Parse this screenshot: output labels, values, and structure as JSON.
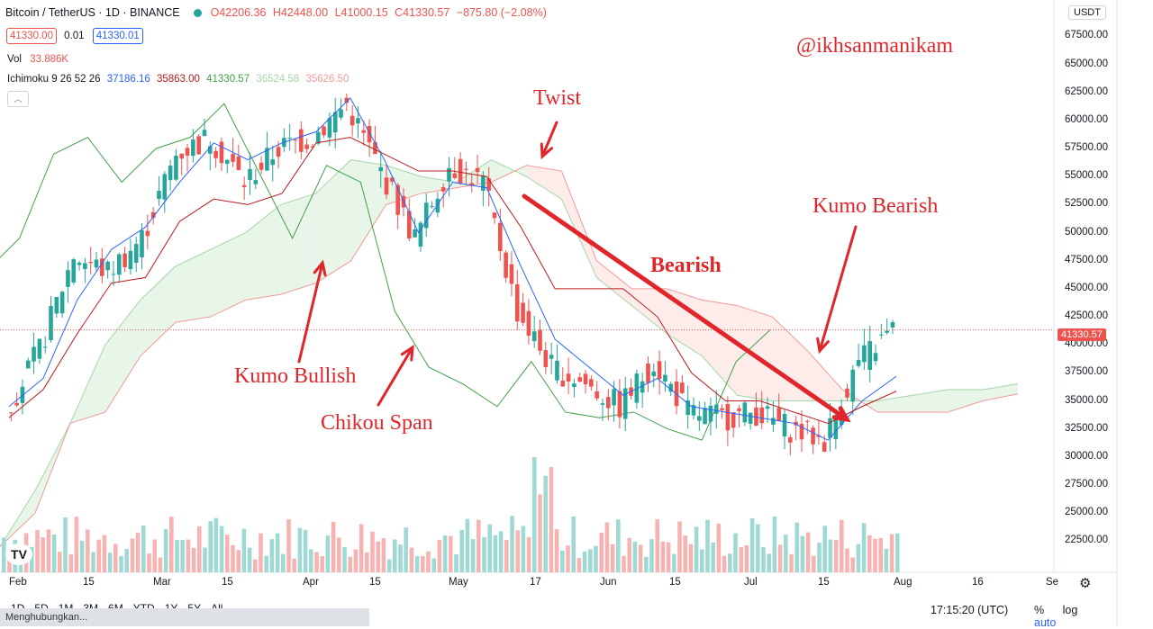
{
  "symbol_legend": {
    "title": "Bitcoin / TetherUS · 1D · BINANCE",
    "open": "O42206.36",
    "high": "H42448.00",
    "low": "L41000.15",
    "close": "C41330.57",
    "change": "−875.80 (−2.08%)"
  },
  "order_row": {
    "sell": "41330.00",
    "spread": "0.01",
    "buy": "41330.01"
  },
  "volume_legend": {
    "name": "Vol",
    "value": "33.886K"
  },
  "ichimoku_legend": {
    "name": "Ichimoku 9 26 52 26",
    "conversion": "37186.16",
    "base": "35863.00",
    "lagging": "41330.57",
    "lead_a": "36524.58",
    "lead_b": "35626.50"
  },
  "currency_button": "USDT",
  "current_price_label": "41330.57",
  "price_ticks": [
    "67500.00",
    "65000.00",
    "62500.00",
    "60000.00",
    "57500.00",
    "55000.00",
    "52500.00",
    "50000.00",
    "47500.00",
    "45000.00",
    "42500.00",
    "40000.00",
    "37500.00",
    "35000.00",
    "32500.00",
    "30000.00",
    "27500.00",
    "25000.00",
    "22500.00"
  ],
  "time_labels": [
    "Feb",
    "15",
    "Mar",
    "15",
    "Apr",
    "15",
    "May",
    "17",
    "Jun",
    "15",
    "Jul",
    "15",
    "Aug",
    "16",
    "Se"
  ],
  "annotations": {
    "watermark": "@ikhsanmanikam",
    "twist": "Twist",
    "kumo_bearish": "Kumo Bearish",
    "bearish": "Bearish",
    "kumo_bullish": "Kumo Bullish",
    "chikou_span": "Chikou Span"
  },
  "bottom_bar": {
    "timeframes": [
      "1D",
      "5D",
      "1M",
      "3M",
      "6M",
      "YTD",
      "1Y",
      "5Y",
      "All"
    ],
    "clock": "17:15:20 (UTC)",
    "percent": "%",
    "log": "log",
    "auto": "auto"
  },
  "status_text": "Menghubungkan...",
  "colors": {
    "up": "#26a69a",
    "down": "#ef5350",
    "conversion": "#2962ff",
    "base": "#b71c1c",
    "lagging": "#43a047",
    "kumo_bull": "#a5d6a7",
    "kumo_bear": "#ef9a9a",
    "annotation": "#e0262a"
  },
  "chart_data": {
    "type": "line",
    "title": "Bitcoin / TetherUS · 1D · BINANCE",
    "xlabel": "",
    "ylabel": "",
    "ylim": [
      21000,
      68500
    ],
    "x": [
      "Feb 1",
      "Feb 8",
      "Feb 15",
      "Feb 22",
      "Mar 1",
      "Mar 8",
      "Mar 15",
      "Mar 22",
      "Mar 29",
      "Apr 5",
      "Apr 12",
      "Apr 19",
      "Apr 26",
      "May 3",
      "May 10",
      "May 17",
      "May 24",
      "May 31",
      "Jun 7",
      "Jun 14",
      "Jun 21",
      "Jun 28",
      "Jul 5",
      "Jul 12",
      "Jul 19",
      "Jul 26",
      "Jul 31"
    ],
    "series": [
      {
        "name": "close",
        "values": [
          34000,
          39500,
          48000,
          46500,
          49500,
          57000,
          58500,
          54500,
          57500,
          58500,
          61500,
          55500,
          49500,
          56000,
          54500,
          43000,
          38000,
          36500,
          34500,
          38500,
          34000,
          33500,
          34000,
          32500,
          31500,
          38500,
          41330
        ]
      },
      {
        "name": "conversion",
        "values": [
          34500,
          37000,
          44000,
          48500,
          50500,
          54500,
          58000,
          56500,
          58000,
          59000,
          62000,
          56500,
          50000,
          54500,
          54000,
          47000,
          40500,
          38000,
          35500,
          37000,
          34500,
          34000,
          33500,
          33000,
          31500,
          35000,
          37186
        ]
      },
      {
        "name": "base",
        "values": [
          33500,
          36000,
          41000,
          45500,
          46000,
          51000,
          53000,
          52500,
          53500,
          58000,
          58500,
          57000,
          55500,
          55500,
          55000,
          50500,
          45000,
          45000,
          45000,
          42500,
          37500,
          35000,
          35000,
          34000,
          33000,
          34500,
          35863
        ]
      }
    ],
    "kumo": {
      "lead_a": [
        22000,
        27000,
        33000,
        40000,
        44000,
        47000,
        48500,
        50000,
        52500,
        53500,
        56500,
        56000,
        55000,
        54500,
        56500,
        55000,
        53000,
        46000,
        43500,
        41000,
        39000,
        35500,
        35000,
        35000,
        35000,
        35000,
        35500,
        36000,
        36000,
        36524
      ],
      "lead_b": [
        22000,
        25000,
        33000,
        34000,
        39000,
        42000,
        42500,
        44000,
        44500,
        45500,
        47500,
        52500,
        53500,
        54000,
        54500,
        56000,
        55500,
        47500,
        45000,
        45000,
        44000,
        43500,
        42500,
        39500,
        36000,
        34000,
        34000,
        34000,
        35000,
        35626
      ]
    },
    "volume_label": "33.886K"
  }
}
